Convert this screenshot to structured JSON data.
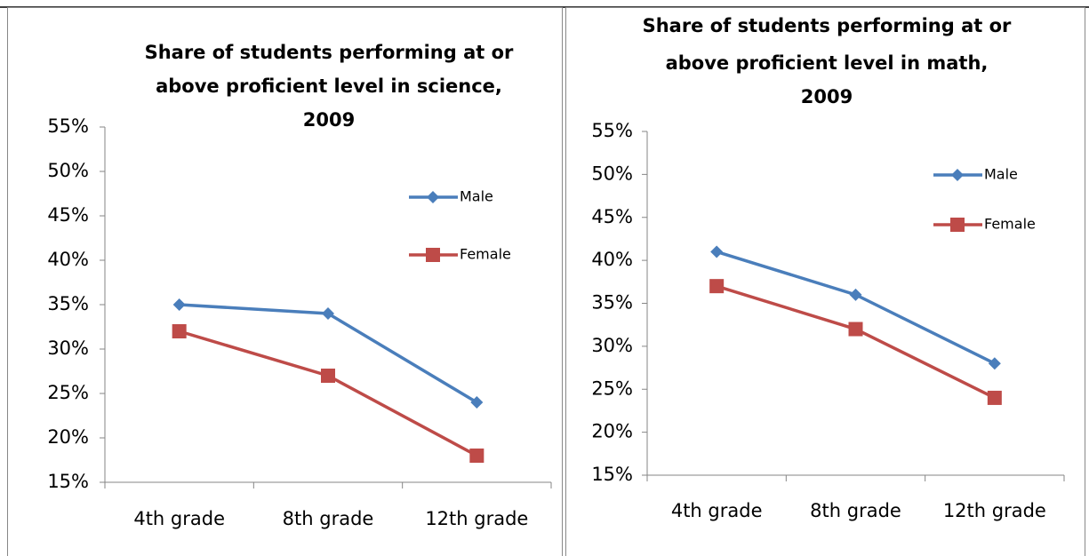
{
  "chart_data": [
    {
      "type": "line",
      "title": [
        "Share of students performing at or",
        "above proficient level in science,",
        "2009"
      ],
      "categories": [
        "4th grade",
        "8th grade",
        "12th grade"
      ],
      "series": [
        {
          "name": "Male",
          "color": "#4a7ebb",
          "marker": "diamond",
          "values": [
            35,
            34,
            24
          ]
        },
        {
          "name": "Female",
          "color": "#be4b48",
          "marker": "square",
          "values": [
            32,
            27,
            18
          ]
        }
      ],
      "ylim": [
        15,
        55
      ],
      "yticks": [
        {
          "value": 15,
          "label": "15%"
        },
        {
          "value": 20,
          "label": "20%"
        },
        {
          "value": 25,
          "label": "25%"
        },
        {
          "value": 30,
          "label": "30%"
        },
        {
          "value": 35,
          "label": "35%"
        },
        {
          "value": 40,
          "label": "40%"
        },
        {
          "value": 45,
          "label": "45%"
        },
        {
          "value": 50,
          "label": "50%"
        },
        {
          "value": 55,
          "label": "55%"
        }
      ],
      "grid": false,
      "legend": "right"
    },
    {
      "type": "line",
      "title": [
        "Share of students performing at or",
        "above proficient level in math,",
        "2009"
      ],
      "categories": [
        "4th grade",
        "8th grade",
        "12th grade"
      ],
      "series": [
        {
          "name": "Male",
          "color": "#4a7ebb",
          "marker": "diamond",
          "values": [
            41,
            36,
            28
          ]
        },
        {
          "name": "Female",
          "color": "#be4b48",
          "marker": "square",
          "values": [
            37,
            32,
            24
          ]
        }
      ],
      "ylim": [
        15,
        55
      ],
      "yticks": [
        {
          "value": 15,
          "label": "15%"
        },
        {
          "value": 20,
          "label": "20%"
        },
        {
          "value": 25,
          "label": "25%"
        },
        {
          "value": 30,
          "label": "30%"
        },
        {
          "value": 35,
          "label": "35%"
        },
        {
          "value": 40,
          "label": "40%"
        },
        {
          "value": 45,
          "label": "45%"
        },
        {
          "value": 50,
          "label": "50%"
        },
        {
          "value": 55,
          "label": "55%"
        }
      ],
      "grid": false,
      "legend": "right"
    }
  ]
}
